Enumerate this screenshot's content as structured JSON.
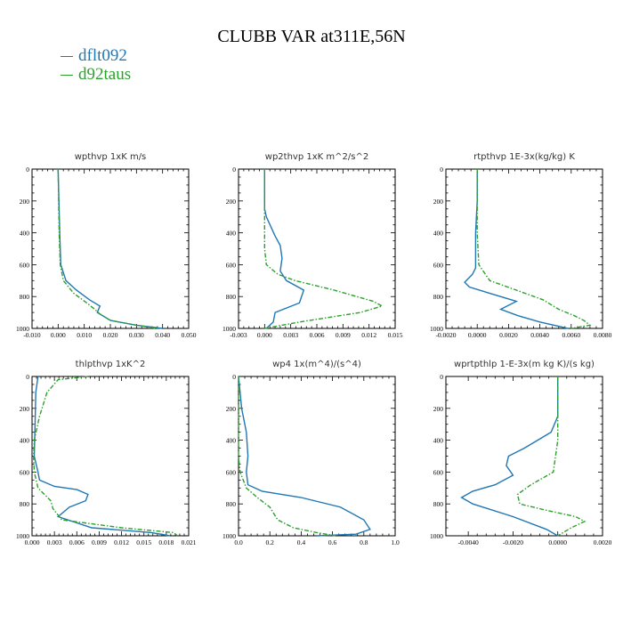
{
  "figure": {
    "title": "CLUBB VAR at311E,56N",
    "legend": [
      {
        "label": "dflt092",
        "color": "#1f77b4",
        "dash": "solid"
      },
      {
        "label": "d92taus",
        "color": "#2ca02c",
        "dash": "dashdot"
      }
    ]
  },
  "chart_data": [
    {
      "type": "line",
      "title": "wpthvp   1xK  m/s",
      "xlim": [
        -0.01,
        0.05
      ],
      "xticks": [
        -0.01,
        0.0,
        0.01,
        0.02,
        0.03,
        0.04,
        0.05
      ],
      "xtick_labels": [
        "-0.010",
        "0.000",
        "0.010",
        "0.020",
        "0.030",
        "0.040",
        "0.050"
      ],
      "ylim": [
        1000,
        0
      ],
      "yticks": [
        0,
        200,
        400,
        600,
        800,
        1000
      ],
      "series": [
        {
          "name": "dflt092",
          "x": [
            0.0,
            0.0003,
            0.0006,
            0.001,
            0.003,
            0.007,
            0.012,
            0.016,
            0.015,
            0.02,
            0.03,
            0.04
          ],
          "y": [
            0,
            200,
            400,
            600,
            700,
            760,
            820,
            860,
            900,
            950,
            980,
            1000
          ]
        },
        {
          "name": "d92taus",
          "x": [
            0.0,
            0.0002,
            0.0004,
            0.0008,
            0.002,
            0.006,
            0.011,
            0.014,
            0.016,
            0.02,
            0.03,
            0.038
          ],
          "y": [
            0,
            200,
            400,
            600,
            700,
            780,
            840,
            880,
            910,
            950,
            980,
            1000
          ]
        }
      ]
    },
    {
      "type": "line",
      "title": "wp2thvp   1xK  m^2/s^2",
      "xlim": [
        -0.003,
        0.015
      ],
      "xticks": [
        -0.003,
        0.0,
        0.003,
        0.006,
        0.009,
        0.012,
        0.015
      ],
      "xtick_labels": [
        "-0.003",
        "0.000",
        "0.003",
        "0.006",
        "0.009",
        "0.012",
        "0.015"
      ],
      "ylim": [
        1000,
        0
      ],
      "yticks": [
        0,
        200,
        400,
        600,
        800,
        1000
      ],
      "series": [
        {
          "name": "dflt092",
          "x": [
            0.0,
            0.0,
            0.0002,
            0.0012,
            0.0018,
            0.002,
            0.0018,
            0.0025,
            0.0045,
            0.004,
            0.0012,
            0.001,
            0.0002
          ],
          "y": [
            0,
            250,
            300,
            420,
            480,
            560,
            640,
            700,
            760,
            840,
            900,
            960,
            1000
          ]
        },
        {
          "name": "d92taus",
          "x": [
            0.0,
            0.0,
            0.0,
            0.0002,
            0.0015,
            0.0035,
            0.008,
            0.0125,
            0.0135,
            0.011,
            0.004,
            0.0
          ],
          "y": [
            0,
            300,
            500,
            600,
            660,
            700,
            760,
            830,
            860,
            900,
            960,
            1000
          ]
        }
      ]
    },
    {
      "type": "line",
      "title": "rtpthvp   1E-3x(kg/kg)  K",
      "xlim": [
        -0.002,
        0.008
      ],
      "xticks": [
        -0.002,
        0.0,
        0.002,
        0.004,
        0.006,
        0.008
      ],
      "xtick_labels": [
        "-0.0020",
        "0.0000",
        "0.0020",
        "0.0040",
        "0.0060",
        "0.0080"
      ],
      "ylim": [
        1000,
        0
      ],
      "yticks": [
        0,
        200,
        400,
        600,
        800,
        1000
      ],
      "series": [
        {
          "name": "dflt092",
          "x": [
            0.0,
            0.0,
            -0.0001,
            -0.0001,
            -0.0003,
            -0.0008,
            -0.0005,
            0.0008,
            0.0025,
            0.0015,
            0.0026,
            0.004,
            0.0058
          ],
          "y": [
            0,
            200,
            400,
            620,
            660,
            710,
            740,
            780,
            830,
            880,
            920,
            960,
            1000
          ]
        },
        {
          "name": "d92taus",
          "x": [
            0.0,
            0.0,
            0.0,
            0.0001,
            0.0008,
            0.0025,
            0.0042,
            0.0052,
            0.0062,
            0.0068,
            0.0072,
            0.006
          ],
          "y": [
            0,
            200,
            400,
            600,
            700,
            760,
            820,
            880,
            920,
            950,
            980,
            1000
          ]
        }
      ]
    },
    {
      "type": "line",
      "title": "thlpthvp   1xK^2",
      "xlim": [
        0.0,
        0.021
      ],
      "xticks": [
        0.0,
        0.003,
        0.006,
        0.009,
        0.012,
        0.015,
        0.018,
        0.021
      ],
      "xtick_labels": [
        "0.000",
        "0.003",
        "0.006",
        "0.009",
        "0.012",
        "0.015",
        "0.018",
        "0.021"
      ],
      "ylim": [
        1000,
        0
      ],
      "yticks": [
        0,
        200,
        400,
        600,
        800,
        1000
      ],
      "series": [
        {
          "name": "dflt092",
          "x": [
            0.0008,
            0.0005,
            0.0004,
            0.0003,
            0.0008,
            0.001,
            0.003,
            0.006,
            0.0075,
            0.0072,
            0.005,
            0.0035,
            0.008,
            0.016,
            0.0185
          ],
          "y": [
            0,
            100,
            300,
            500,
            600,
            650,
            690,
            710,
            740,
            780,
            820,
            880,
            950,
            980,
            1000
          ]
        },
        {
          "name": "d92taus",
          "x": [
            0.0075,
            0.0035,
            0.002,
            0.001,
            0.0003,
            0.0002,
            0.0003,
            0.0008,
            0.0025,
            0.0028,
            0.004,
            0.012,
            0.019,
            0.0195
          ],
          "y": [
            0,
            20,
            100,
            250,
            400,
            500,
            600,
            700,
            780,
            830,
            900,
            950,
            980,
            1000
          ]
        }
      ]
    },
    {
      "type": "line",
      "title": "wp4   1x(m^4)/(s^4)",
      "xlim": [
        0.0,
        1.0
      ],
      "xticks": [
        0.0,
        0.2,
        0.4,
        0.6,
        0.8,
        1.0
      ],
      "xtick_labels": [
        "0.0",
        "0.2",
        "0.4",
        "0.6",
        "0.8",
        "1.0"
      ],
      "ylim": [
        1000,
        0
      ],
      "yticks": [
        0,
        200,
        400,
        600,
        800,
        1000
      ],
      "series": [
        {
          "name": "dflt092",
          "x": [
            0.0,
            0.02,
            0.05,
            0.06,
            0.05,
            0.06,
            0.15,
            0.4,
            0.65,
            0.8,
            0.84,
            0.75,
            0.5
          ],
          "y": [
            0,
            200,
            350,
            500,
            600,
            680,
            720,
            760,
            820,
            900,
            960,
            990,
            1000
          ]
        },
        {
          "name": "d92taus",
          "x": [
            0.0,
            0.0,
            0.0,
            0.01,
            0.05,
            0.12,
            0.2,
            0.25,
            0.35,
            0.5,
            0.62
          ],
          "y": [
            0,
            300,
            500,
            600,
            700,
            760,
            820,
            900,
            950,
            980,
            1000
          ]
        }
      ]
    },
    {
      "type": "line",
      "title": "wprtpthlp   1-E-3x(m kg K)/(s kg)",
      "xlim": [
        -0.005,
        0.002
      ],
      "xticks": [
        -0.004,
        -0.002,
        0.0,
        0.002
      ],
      "xtick_labels": [
        "-0.0040",
        "-0.0020",
        "0.0000",
        "0.0020"
      ],
      "ylim": [
        1000,
        0
      ],
      "yticks": [
        0,
        200,
        400,
        600,
        800,
        1000
      ],
      "series": [
        {
          "name": "dflt092",
          "x": [
            0.0,
            0.0,
            -0.0003,
            -0.0015,
            -0.0022,
            -0.0023,
            -0.002,
            -0.0028,
            -0.0038,
            -0.0043,
            -0.0038,
            -0.002,
            -0.0005,
            0.0
          ],
          "y": [
            0,
            250,
            350,
            450,
            500,
            560,
            620,
            680,
            720,
            760,
            800,
            880,
            960,
            1000
          ]
        },
        {
          "name": "d92taus",
          "x": [
            0.0,
            0.0,
            0.0,
            -0.0002,
            -0.0012,
            -0.0018,
            -0.0017,
            -0.0005,
            0.0008,
            0.0012,
            0.0006,
            0.0
          ],
          "y": [
            0,
            200,
            400,
            600,
            680,
            740,
            800,
            840,
            880,
            910,
            950,
            1000
          ]
        }
      ]
    }
  ]
}
